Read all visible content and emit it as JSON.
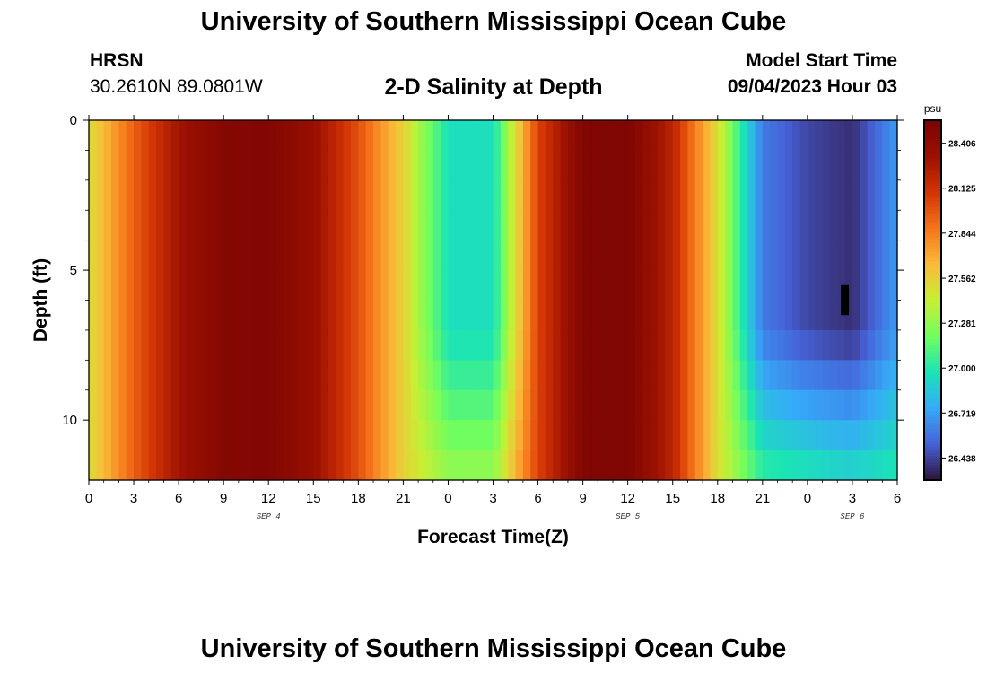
{
  "page": {
    "title": "University of Southern Mississippi Ocean Cube",
    "title_repeat": "University of Southern Mississippi Ocean Cube",
    "station": "HRSN",
    "coordinates": "30.2610N  89.0801W",
    "subtitle": "2-D Salinity at Depth",
    "model_start_label": "Model Start Time",
    "model_start_value": "09/04/2023 Hour 03"
  },
  "chart_data": {
    "type": "heatmap",
    "title": "2-D Salinity at Depth",
    "xlabel": "Forecast Time(Z)",
    "ylabel": "Depth (ft)",
    "x_tick_labels": [
      "0",
      "3",
      "6",
      "9",
      "12",
      "15",
      "18",
      "21",
      "0",
      "3",
      "6",
      "9",
      "12",
      "15",
      "18",
      "21",
      "0",
      "3",
      "6"
    ],
    "x_ticks_hours": [
      0,
      3,
      6,
      9,
      12,
      15,
      18,
      21,
      24,
      27,
      30,
      33,
      36,
      39,
      42,
      45,
      48,
      51,
      54
    ],
    "x_range_hours": [
      0,
      54
    ],
    "date_labels": [
      {
        "text": "SEP 4",
        "hour": 12
      },
      {
        "text": "SEP 5",
        "hour": 36
      },
      {
        "text": "SEP 6",
        "hour": 51
      }
    ],
    "y_tick_labels": [
      "0",
      "5",
      "10"
    ],
    "y_ticks": [
      0,
      5,
      10
    ],
    "y_range": [
      0,
      12
    ],
    "y_reversed": true,
    "colorbar": {
      "unit": "psu",
      "min": 26.3,
      "max": 28.55,
      "tick_labels": [
        "28.406",
        "28.125",
        "27.844",
        "27.562",
        "27.281",
        "27.000",
        "26.719",
        "26.438"
      ],
      "ticks": [
        28.406,
        28.125,
        27.844,
        27.562,
        27.281,
        27.0,
        26.719,
        26.438
      ]
    },
    "depth_levels": [
      0,
      1,
      2,
      3,
      4,
      5,
      6,
      7,
      8,
      9,
      10,
      11
    ],
    "depth_hours": [
      0,
      3,
      6,
      9,
      12,
      15,
      18,
      21,
      24,
      27,
      30,
      33,
      36,
      39,
      42,
      45,
      48,
      51,
      54
    ],
    "surface_salinity": [
      27.5,
      27.95,
      28.3,
      28.48,
      28.5,
      28.35,
      28.0,
      27.55,
      26.95,
      26.95,
      28.05,
      28.5,
      28.52,
      28.2,
      27.5,
      26.6,
      26.45,
      26.38,
      26.7
    ],
    "bottom_salinity": [
      27.5,
      27.95,
      28.3,
      28.48,
      28.5,
      28.35,
      28.0,
      27.55,
      27.3,
      27.3,
      28.05,
      28.5,
      28.52,
      28.2,
      27.5,
      27.05,
      27.0,
      26.95,
      27.0
    ],
    "bottom_effect_start_depth": 7,
    "dark_column": {
      "hour": 50.5,
      "depth_from": 5.5,
      "depth_to": 6.5
    }
  }
}
